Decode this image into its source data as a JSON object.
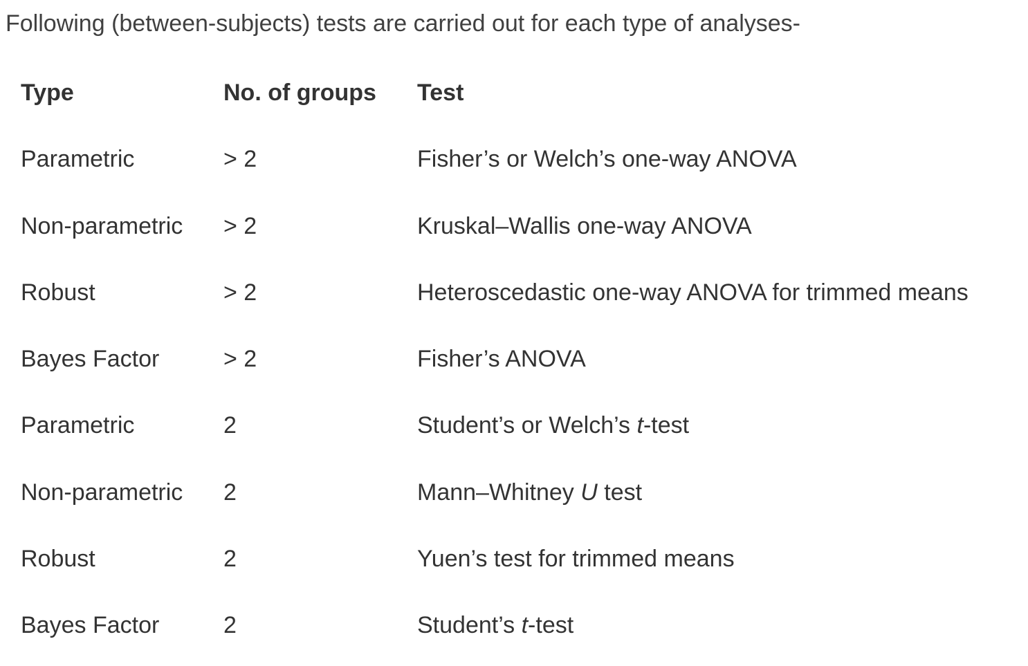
{
  "intro": "Following (between-subjects) tests are carried out for each type of analyses-",
  "table": {
    "headers": {
      "type": "Type",
      "groups": "No. of groups",
      "test": "Test"
    },
    "rows": [
      {
        "type": "Parametric",
        "groups": "> 2",
        "test_pre": "Fisher’s or Welch’s one-way ANOVA",
        "test_ital": "",
        "test_post": ""
      },
      {
        "type": "Non-parametric",
        "groups": "> 2",
        "test_pre": "Kruskal–Wallis one-way ANOVA",
        "test_ital": "",
        "test_post": ""
      },
      {
        "type": "Robust",
        "groups": "> 2",
        "test_pre": "Heteroscedastic one-way ANOVA for trimmed means",
        "test_ital": "",
        "test_post": ""
      },
      {
        "type": "Bayes Factor",
        "groups": "> 2",
        "test_pre": "Fisher’s ANOVA",
        "test_ital": "",
        "test_post": ""
      },
      {
        "type": "Parametric",
        "groups": "2",
        "test_pre": "Student’s or Welch’s ",
        "test_ital": "t",
        "test_post": "-test"
      },
      {
        "type": "Non-parametric",
        "groups": "2",
        "test_pre": "Mann–Whitney ",
        "test_ital": "U",
        "test_post": " test"
      },
      {
        "type": "Robust",
        "groups": "2",
        "test_pre": "Yuen’s test for trimmed means",
        "test_ital": "",
        "test_post": ""
      },
      {
        "type": "Bayes Factor",
        "groups": "2",
        "test_pre": "Student’s ",
        "test_ital": "t",
        "test_post": "-test"
      }
    ]
  }
}
